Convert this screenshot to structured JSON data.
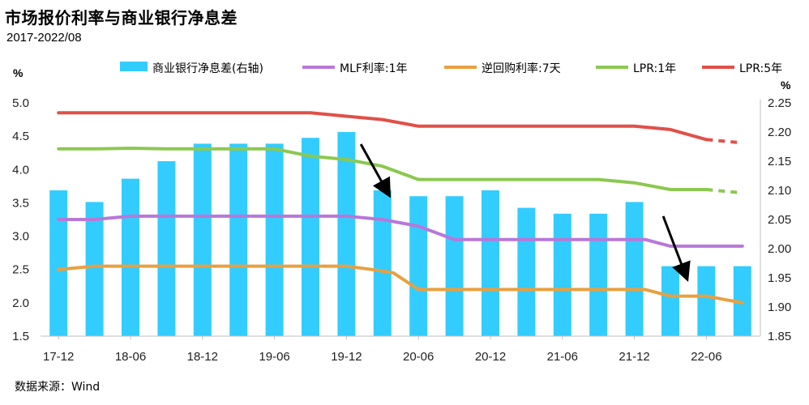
{
  "header": {
    "title": "市场报价利率与商业银行净息差",
    "subtitle": "2017-2022/08"
  },
  "footer": {
    "source": "数据来源：Wind"
  },
  "chart_data": {
    "type": "bar+line",
    "x_tick_labels": [
      "17-12",
      "18-06",
      "18-12",
      "19-06",
      "19-12",
      "20-06",
      "20-12",
      "21-06",
      "21-12",
      "22-06"
    ],
    "left_axis": {
      "unit": "%",
      "ylim": [
        1.5,
        5.0
      ],
      "ticks": [
        "1.5",
        "2.0",
        "2.5",
        "3.0",
        "3.5",
        "4.0",
        "4.5",
        "5.0"
      ]
    },
    "right_axis": {
      "unit": "%",
      "ylim": [
        1.85,
        2.25
      ],
      "ticks": [
        "1.85",
        "1.90",
        "1.95",
        "2.00",
        "2.05",
        "2.10",
        "2.15",
        "2.20",
        "2.25"
      ]
    },
    "bars": {
      "name": "商业银行净息差(右轴)",
      "color": "#33ccff",
      "axis": "right",
      "values": [
        2.1,
        2.08,
        2.12,
        2.15,
        2.18,
        2.18,
        2.18,
        2.19,
        2.2,
        2.1,
        2.09,
        2.09,
        2.1,
        2.07,
        2.06,
        2.06,
        2.08,
        1.97,
        1.97,
        1.97
      ]
    },
    "series": [
      {
        "name": "MLF利率:1年",
        "color": "#b878d8",
        "axis": "left",
        "x": [
          0,
          1,
          2,
          3,
          4,
          5,
          6,
          7,
          8,
          9,
          9.5,
          10,
          11,
          12,
          13,
          14,
          15,
          16,
          16.3,
          17,
          18,
          19
        ],
        "values": [
          3.25,
          3.25,
          3.3,
          3.3,
          3.3,
          3.3,
          3.3,
          3.3,
          3.3,
          3.25,
          3.2,
          3.15,
          2.95,
          2.95,
          2.95,
          2.95,
          2.95,
          2.95,
          2.95,
          2.85,
          2.85,
          2.85
        ]
      },
      {
        "name": "逆回购利率:7天",
        "color": "#e8a040",
        "axis": "left",
        "x": [
          0,
          1,
          2,
          3,
          4,
          5,
          6,
          7,
          8,
          8.7,
          9.3,
          10,
          11,
          12,
          13,
          14,
          15,
          16,
          16.3,
          17,
          18,
          19
        ],
        "values": [
          2.5,
          2.55,
          2.55,
          2.55,
          2.55,
          2.55,
          2.55,
          2.55,
          2.55,
          2.5,
          2.45,
          2.2,
          2.2,
          2.2,
          2.2,
          2.2,
          2.2,
          2.2,
          2.2,
          2.1,
          2.1,
          2.0
        ]
      },
      {
        "name": "LPR:1年",
        "color": "#8cc850",
        "axis": "left",
        "dashed_from": 18,
        "x": [
          0,
          1,
          2,
          3,
          4,
          5,
          6,
          7,
          8,
          9,
          10,
          11,
          12,
          13,
          14,
          15,
          16,
          17,
          18,
          19
        ],
        "values": [
          4.31,
          4.31,
          4.32,
          4.31,
          4.31,
          4.31,
          4.31,
          4.2,
          4.15,
          4.05,
          3.85,
          3.85,
          3.85,
          3.85,
          3.85,
          3.85,
          3.8,
          3.7,
          3.7,
          3.65
        ]
      },
      {
        "name": "LPR:5年",
        "color": "#e05048",
        "axis": "left",
        "dashed_from": 18,
        "x": [
          0,
          1,
          2,
          3,
          4,
          5,
          6,
          7,
          8,
          9,
          10,
          11,
          12,
          13,
          14,
          15,
          16,
          17,
          18,
          19
        ],
        "values": [
          4.85,
          4.85,
          4.85,
          4.85,
          4.85,
          4.85,
          4.85,
          4.85,
          4.8,
          4.75,
          4.65,
          4.65,
          4.65,
          4.65,
          4.65,
          4.65,
          4.65,
          4.6,
          4.45,
          4.4
        ]
      }
    ],
    "arrows": [
      {
        "from_x": 8.4,
        "from_y": 4.38,
        "to_x": 9.1,
        "to_y": 3.7
      },
      {
        "from_x": 16.8,
        "from_y": 3.3,
        "to_x": 17.4,
        "to_y": 2.45
      }
    ],
    "grid": false,
    "legend": "top"
  }
}
